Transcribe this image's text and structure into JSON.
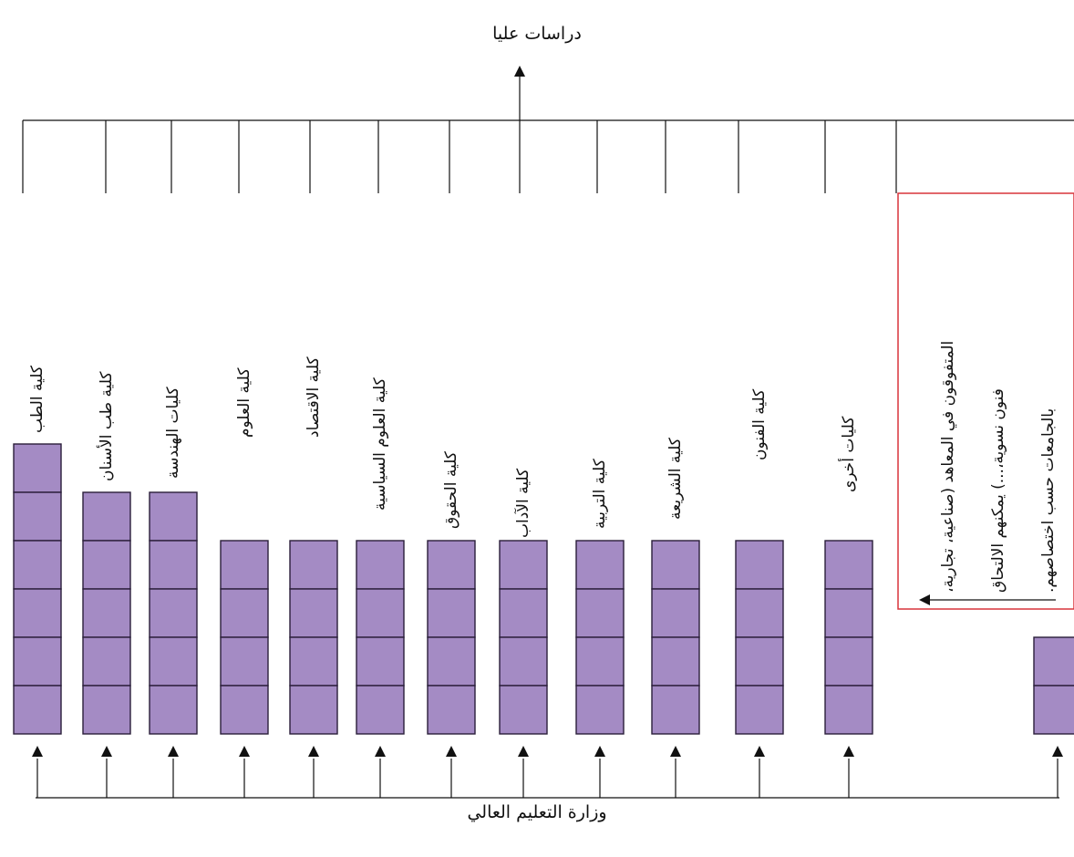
{
  "diagram": {
    "top_label": "دراسات عليا",
    "bottom_label": "وزارة التعليم العالي",
    "box_fill": "#a48bc4",
    "box_stroke": "#2a1e3a",
    "note_border_color": "#d9343a",
    "line_color": "#111111",
    "columns": [
      {
        "label": "كلية الطب",
        "cells": 6
      },
      {
        "label": "كلية طب الأسنان",
        "cells": 5
      },
      {
        "label": "كليات الهندسة",
        "cells": 5
      },
      {
        "label": "كلية العلوم",
        "cells": 4
      },
      {
        "label": "كلية الاقتصاد",
        "cells": 4
      },
      {
        "label": "كلية العلوم السياسية",
        "cells": 4
      },
      {
        "label": "كلية الحقوق",
        "cells": 4
      },
      {
        "label": "كلية الآداب",
        "cells": 4
      },
      {
        "label": "كلية التربية",
        "cells": 4
      },
      {
        "label": "كلية الشريعة",
        "cells": 4
      },
      {
        "label": "كلية الفنون",
        "cells": 4
      },
      {
        "label": "كليات أخرى",
        "cells": 4
      },
      {
        "label": "",
        "cells": 2
      }
    ],
    "note_lines": [
      "المتفوقون في المعاهد (صناعية، تجارية،",
      "فنون نسوية،...) يمكنهم الالتحاق",
      "بالجامعات حسب اختصاصهم."
    ]
  }
}
